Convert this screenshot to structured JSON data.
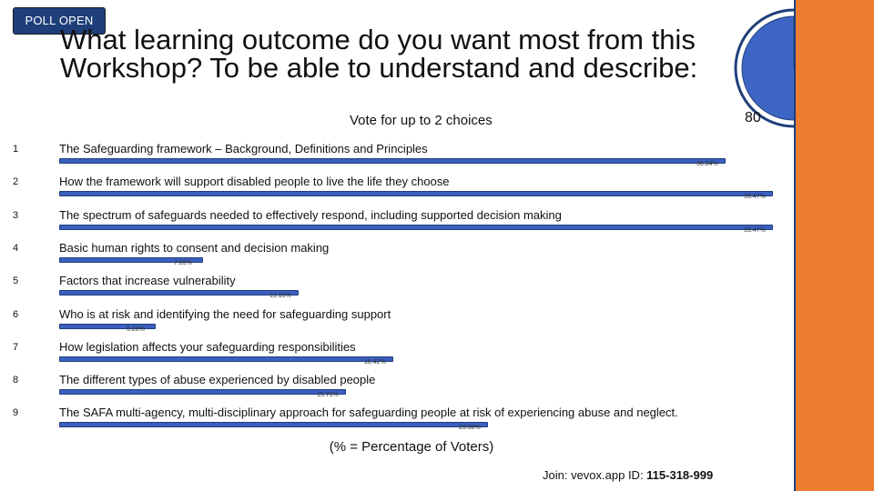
{
  "badge": "POLL OPEN",
  "title": "What learning outcome do you want most from this Workshop? To be able to understand and describe:",
  "subtitle": "Vote for up to 2 choices",
  "timer": {
    "value": "80",
    "remaining_fraction": 1.0
  },
  "options": [
    {
      "num": "1",
      "label": "The Safeguarding framework – Background, Definitions and Principles",
      "percent": 36.84,
      "percent_label": "36.84%"
    },
    {
      "num": "2",
      "label": "How the framework will support disabled people to live the life they choose",
      "percent": 39.47,
      "percent_label": "39.47%"
    },
    {
      "num": "3",
      "label": "The spectrum of safeguards needed to effectively respond, including supported decision making",
      "percent": 39.47,
      "percent_label": "39.47%"
    },
    {
      "num": "4",
      "label": "Basic human rights to consent and decision making",
      "percent": 7.89,
      "percent_label": "7.89%"
    },
    {
      "num": "5",
      "label": "Factors that increase vulnerability",
      "percent": 13.16,
      "percent_label": "13.16%"
    },
    {
      "num": "6",
      "label": "Who is at risk and identifying the need for safeguarding support",
      "percent": 5.26,
      "percent_label": "5.26%"
    },
    {
      "num": "7",
      "label": "How legislation affects your safeguarding responsibilities",
      "percent": 18.42,
      "percent_label": "18.42%"
    },
    {
      "num": "8",
      "label": "The different types of abuse experienced by disabled people",
      "percent": 15.79,
      "percent_label": "15.79%"
    },
    {
      "num": "9",
      "label": "The SAFA multi-agency, multi-disciplinary approach for safeguarding people at risk of experiencing abuse and neglect.",
      "percent": 23.68,
      "percent_label": "23.68%"
    }
  ],
  "footnote": "(% = Percentage of Voters)",
  "join": {
    "prefix": "Join: vevox.app ID: ",
    "id": "115-318-999"
  },
  "colors": {
    "bar": "#3b5fc0",
    "badge": "#1f3f7a",
    "accent": "#ed7d31"
  }
}
